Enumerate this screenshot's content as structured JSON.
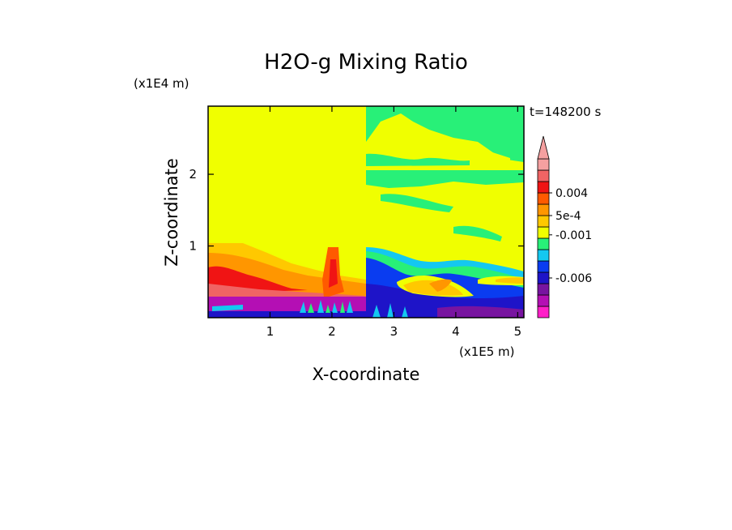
{
  "chart_data": {
    "type": "heatmap",
    "title": "H2O-g Mixing Ratio",
    "xlabel": "X-coordinate",
    "ylabel": "Z-coordinate",
    "x_scale_label": "(x1E5 m)",
    "y_scale_label": "(x1E4 m)",
    "time_label": "t=148200 s",
    "x_ticks": [
      "1",
      "2",
      "3",
      "4",
      "5"
    ],
    "y_ticks": [
      "1",
      "2"
    ],
    "xlim": [
      0,
      5.1
    ],
    "ylim": [
      0,
      2.95
    ],
    "colorbar": {
      "tick_labels": [
        "0.004",
        "5e-4",
        "-0.001",
        "-0.006"
      ],
      "extend": "max",
      "colors_bottom_to_top": [
        "#ff1ec8",
        "#b40fb4",
        "#7814a0",
        "#1e14c8",
        "#0a3cf0",
        "#14c8f0",
        "#28f078",
        "#f0ff00",
        "#ffc800",
        "#ff9600",
        "#ff5a00",
        "#f01414",
        "#f06464",
        "#f5a0a0"
      ]
    },
    "colors": {
      "background_field": "#f0ff00",
      "lower_layer": "#b40fb4",
      "warm_plume": "#f01414"
    }
  }
}
